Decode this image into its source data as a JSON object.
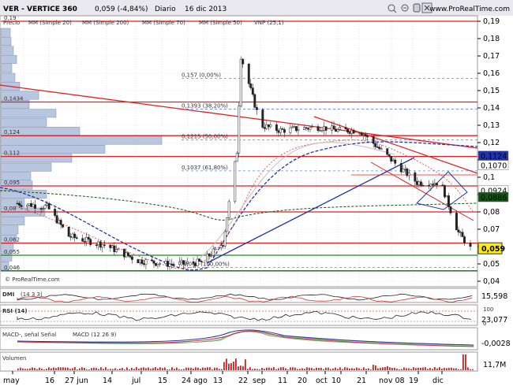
{
  "header": {
    "instrument": "VER - VERTICE 360",
    "change": "0,059 (-4,84%)",
    "period": "Diario",
    "date": "16 dic 2013",
    "site": "www.ProRealTime.com",
    "buttons": [
      "zoom-in-icon",
      "zoom-out-icon",
      "hand-icon",
      "close-icon"
    ]
  },
  "watermark": "© ProRealTime.com",
  "legend": {
    "precio": "Precio",
    "mm20": "MM (Simple 20)",
    "mm200": "MM (Simple 200)",
    "mm70": "MM (Simple 70)",
    "mm50": "MM (Simple 50)",
    "vnp": "VNP (25,1)",
    "colors": {
      "mm20": "#e04040",
      "mm200": "#222299",
      "mm70": "#222299",
      "mm50": "#999999",
      "vnp": "#999999"
    }
  },
  "fib_labels": [
    "0,157 (0,00%)",
    "0,1393 (38,20%)",
    "0,1215 (50,00%)",
    "0,1037 (61,80%)",
    "0,048 (100,00%)"
  ],
  "volume_profile_labels": [
    "0,19",
    "0,1434",
    "0,124",
    "0,112",
    "0,095",
    "0,08",
    "0,062",
    "0,055",
    "0,046"
  ],
  "price_badges": {
    "ma_a": "0,1124",
    "fib": "0,1070",
    "ma_b": "0,0924",
    "ma_c": "0,0886",
    "last": "0,059"
  },
  "x_labels": [
    "may",
    "16",
    "27 jun",
    "14",
    "jul",
    "15",
    "24 ago",
    "13",
    "22",
    "sep",
    "11",
    "20",
    "oct",
    "10",
    "21",
    "nov 08",
    "19",
    "dic"
  ],
  "panels": {
    "dmi": {
      "label": "DMI",
      "params": "(14 3 3)",
      "value": "15,598"
    },
    "rsi": {
      "label": "RSI (14)",
      "level_hi": "100",
      "level_lo": "0",
      "value": "23,077"
    },
    "macd": {
      "label": "MACD-, señal Señal",
      "params": "MACD (12 26 9)",
      "value": "-0,0028"
    },
    "volume": {
      "label": "Volumen",
      "value": "11,7M"
    }
  },
  "chart_data": {
    "type": "candlestick",
    "title": "VER - VERTICE 360",
    "ylim": [
      0.04,
      0.2
    ],
    "y_ticks": [
      "0,19",
      "0,18",
      "0,17",
      "0,16",
      "0,15",
      "0,14",
      "0,13",
      "0,12",
      "0,11",
      "0,1",
      "0,09",
      "0,08",
      "0,07",
      "0,06",
      "0,05",
      "0,04"
    ],
    "horizontal_levels": [
      0.19,
      0.1434,
      0.124,
      0.112,
      0.095,
      0.08,
      0.062,
      0.055,
      0.046
    ],
    "fibonacci": [
      0.157,
      0.1393,
      0.1215,
      0.1037,
      0.048
    ],
    "close_series": {
      "dates": [
        "2013-05-01",
        "2013-05-16",
        "2013-05-27",
        "2013-06-14",
        "2013-07-01",
        "2013-07-15",
        "2013-07-24",
        "2013-08-02",
        "2013-08-13",
        "2013-08-16",
        "2013-08-20",
        "2013-08-22",
        "2013-09-01",
        "2013-09-11",
        "2013-09-20",
        "2013-10-01",
        "2013-10-10",
        "2013-10-21",
        "2013-11-08",
        "2013-11-19",
        "2013-12-01",
        "2013-12-10",
        "2013-12-16"
      ],
      "close": [
        0.085,
        0.083,
        0.066,
        0.061,
        0.052,
        0.05,
        0.05,
        0.051,
        0.062,
        0.085,
        0.115,
        0.17,
        0.13,
        0.127,
        0.128,
        0.129,
        0.127,
        0.127,
        0.108,
        0.097,
        0.097,
        0.068,
        0.059
      ]
    },
    "last_close": 0.059,
    "change_pct": -4.84
  }
}
